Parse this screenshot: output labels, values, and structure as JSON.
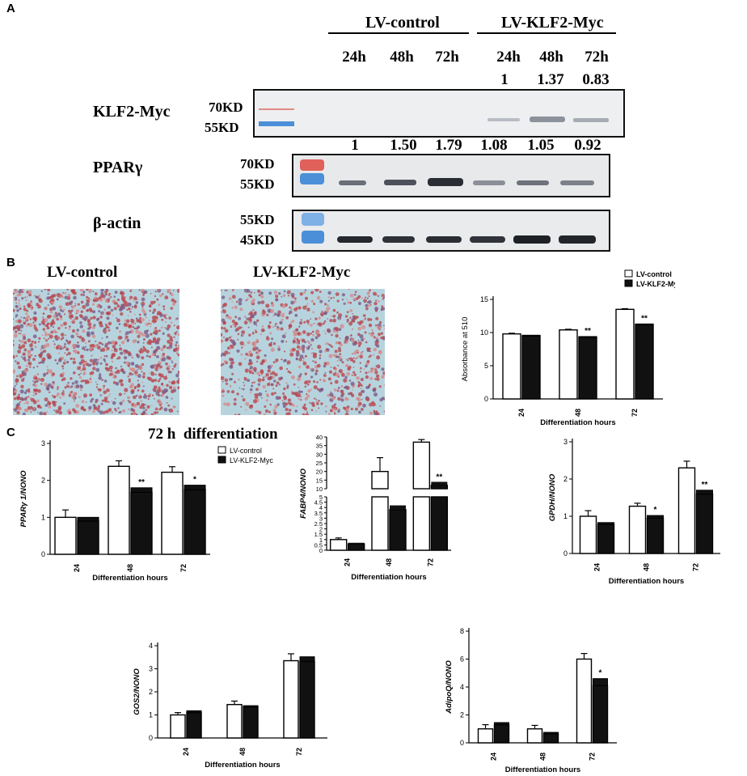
{
  "panelA": {
    "letter": "A",
    "groups": [
      "LV-control",
      "LV-KLF2-Myc"
    ],
    "timepoints": [
      "24h",
      "48h",
      "72h",
      "24h",
      "48h",
      "72h"
    ],
    "klf2_ratios": [
      "1",
      "1.37",
      "0.83"
    ],
    "ppar_ratios": [
      "1",
      "1.50",
      "1.79",
      "1.08",
      "1.05",
      "0.92"
    ],
    "rows": [
      {
        "name": "KLF2-Myc",
        "kd_top": "70KD",
        "kd_bottom": "55KD"
      },
      {
        "name": "PPARγ",
        "kd_top": "70KD",
        "kd_bottom": "55KD"
      },
      {
        "name": "β-actin",
        "kd_top": "55KD",
        "kd_bottom": "45KD"
      }
    ],
    "colors": {
      "marker_red": "#e0605a",
      "marker_blue": "#4a8fd8",
      "blot_bg": "#e9eaec"
    }
  },
  "panelB": {
    "letter": "B",
    "image_labels": [
      "LV-control",
      "LV-KLF2-Myc"
    ]
  },
  "panelC": {
    "letter": "C",
    "title": "72 h  differentiation"
  },
  "chart_data": [
    {
      "type": "bar",
      "categories": [
        "24",
        "48",
        "72"
      ],
      "series": [
        {
          "name": "LV-control",
          "values": [
            9.8,
            10.4,
            13.5
          ],
          "errors": [
            0.1,
            0.1,
            0.1
          ]
        },
        {
          "name": "LV-KLF2-Myc",
          "values": [
            9.5,
            9.3,
            11.2
          ],
          "errors": [
            0.1,
            0.1,
            0.1
          ]
        }
      ],
      "significance": [
        "",
        "**",
        "**"
      ],
      "ylabel": "Absorbance at 510",
      "xlabel": "Differentiation hours",
      "ylim": [
        0,
        15
      ],
      "yticks": [
        "0",
        "5",
        "10",
        "15"
      ],
      "legend": "top-right"
    },
    {
      "type": "bar",
      "categories": [
        "24",
        "48",
        "72"
      ],
      "series": [
        {
          "name": "LV-control",
          "values": [
            1.0,
            2.38,
            2.22
          ],
          "errors": [
            0.2,
            0.15,
            0.15
          ]
        },
        {
          "name": "LV-KLF2-Myc",
          "values": [
            0.9,
            1.68,
            1.75
          ],
          "errors": [
            0.1,
            0.12,
            0.12
          ]
        }
      ],
      "significance": [
        "",
        "**",
        "*"
      ],
      "ylabel": "PPARγ 1/NONO",
      "xlabel": "Differentiation hours",
      "ylim": [
        0,
        3
      ],
      "yticks": [
        "0",
        "1",
        "2",
        "3"
      ],
      "legend": "top-right"
    },
    {
      "type": "bar",
      "broken_axis": true,
      "categories": [
        "24",
        "48",
        "72"
      ],
      "series": [
        {
          "name": "LV-control",
          "values": [
            1.0,
            20,
            37
          ],
          "errors": [
            0.15,
            8,
            1.5
          ]
        },
        {
          "name": "LV-KLF2-Myc",
          "values": [
            0.6,
            3.8,
            12
          ],
          "errors": [
            0.1,
            0.4,
            2
          ]
        }
      ],
      "significance": [
        "",
        "",
        "**"
      ],
      "ylabel": "FABP4/NONO",
      "xlabel": "Differentiation hours",
      "ylim_lower": [
        0,
        5
      ],
      "yticks_lower": [
        "0",
        "0.5",
        "1",
        "1.5",
        "2",
        "2.5",
        "3",
        "3.5",
        "4",
        "4.5",
        "5"
      ],
      "ylim_upper": [
        10,
        40
      ],
      "yticks_upper": [
        "10",
        "15",
        "20",
        "25",
        "30",
        "35",
        "40"
      ]
    },
    {
      "type": "bar",
      "categories": [
        "24",
        "48",
        "72"
      ],
      "series": [
        {
          "name": "LV-control",
          "values": [
            1.0,
            1.27,
            2.3
          ],
          "errors": [
            0.15,
            0.08,
            0.18
          ]
        },
        {
          "name": "LV-KLF2-Myc",
          "values": [
            0.78,
            0.95,
            1.6
          ],
          "errors": [
            0.05,
            0.07,
            0.1
          ]
        }
      ],
      "significance": [
        "",
        "*",
        "**"
      ],
      "ylabel": "GPDH/NONO",
      "xlabel": "Differentiation hours",
      "ylim": [
        0,
        3
      ],
      "yticks": [
        "0",
        "1",
        "2",
        "3"
      ]
    },
    {
      "type": "bar",
      "categories": [
        "24",
        "48",
        "72"
      ],
      "series": [
        {
          "name": "LV-control",
          "values": [
            1.0,
            1.45,
            3.35
          ],
          "errors": [
            0.1,
            0.15,
            0.3
          ]
        },
        {
          "name": "LV-KLF2-Myc",
          "values": [
            1.1,
            1.35,
            3.32
          ],
          "errors": [
            0.08,
            0.05,
            0.2
          ]
        }
      ],
      "significance": [
        "",
        "",
        ""
      ],
      "ylabel": "GOS2/NONO",
      "xlabel": "Differentiation hours",
      "ylim": [
        0,
        4
      ],
      "yticks": [
        "0",
        "1",
        "2",
        "3",
        "4"
      ]
    },
    {
      "type": "bar",
      "categories": [
        "24",
        "48",
        "72"
      ],
      "series": [
        {
          "name": "LV-control",
          "values": [
            1.0,
            1.0,
            6.0
          ],
          "errors": [
            0.3,
            0.25,
            0.4
          ]
        },
        {
          "name": "LV-KLF2-Myc",
          "values": [
            1.3,
            0.65,
            4.1
          ],
          "errors": [
            0.15,
            0.1,
            0.5
          ]
        }
      ],
      "significance": [
        "",
        "",
        "*"
      ],
      "ylabel": "AdipoQ/NONO",
      "xlabel": "Differentiation hours",
      "ylim": [
        0,
        8
      ],
      "yticks": [
        "0",
        "2",
        "4",
        "6",
        "8"
      ]
    }
  ]
}
